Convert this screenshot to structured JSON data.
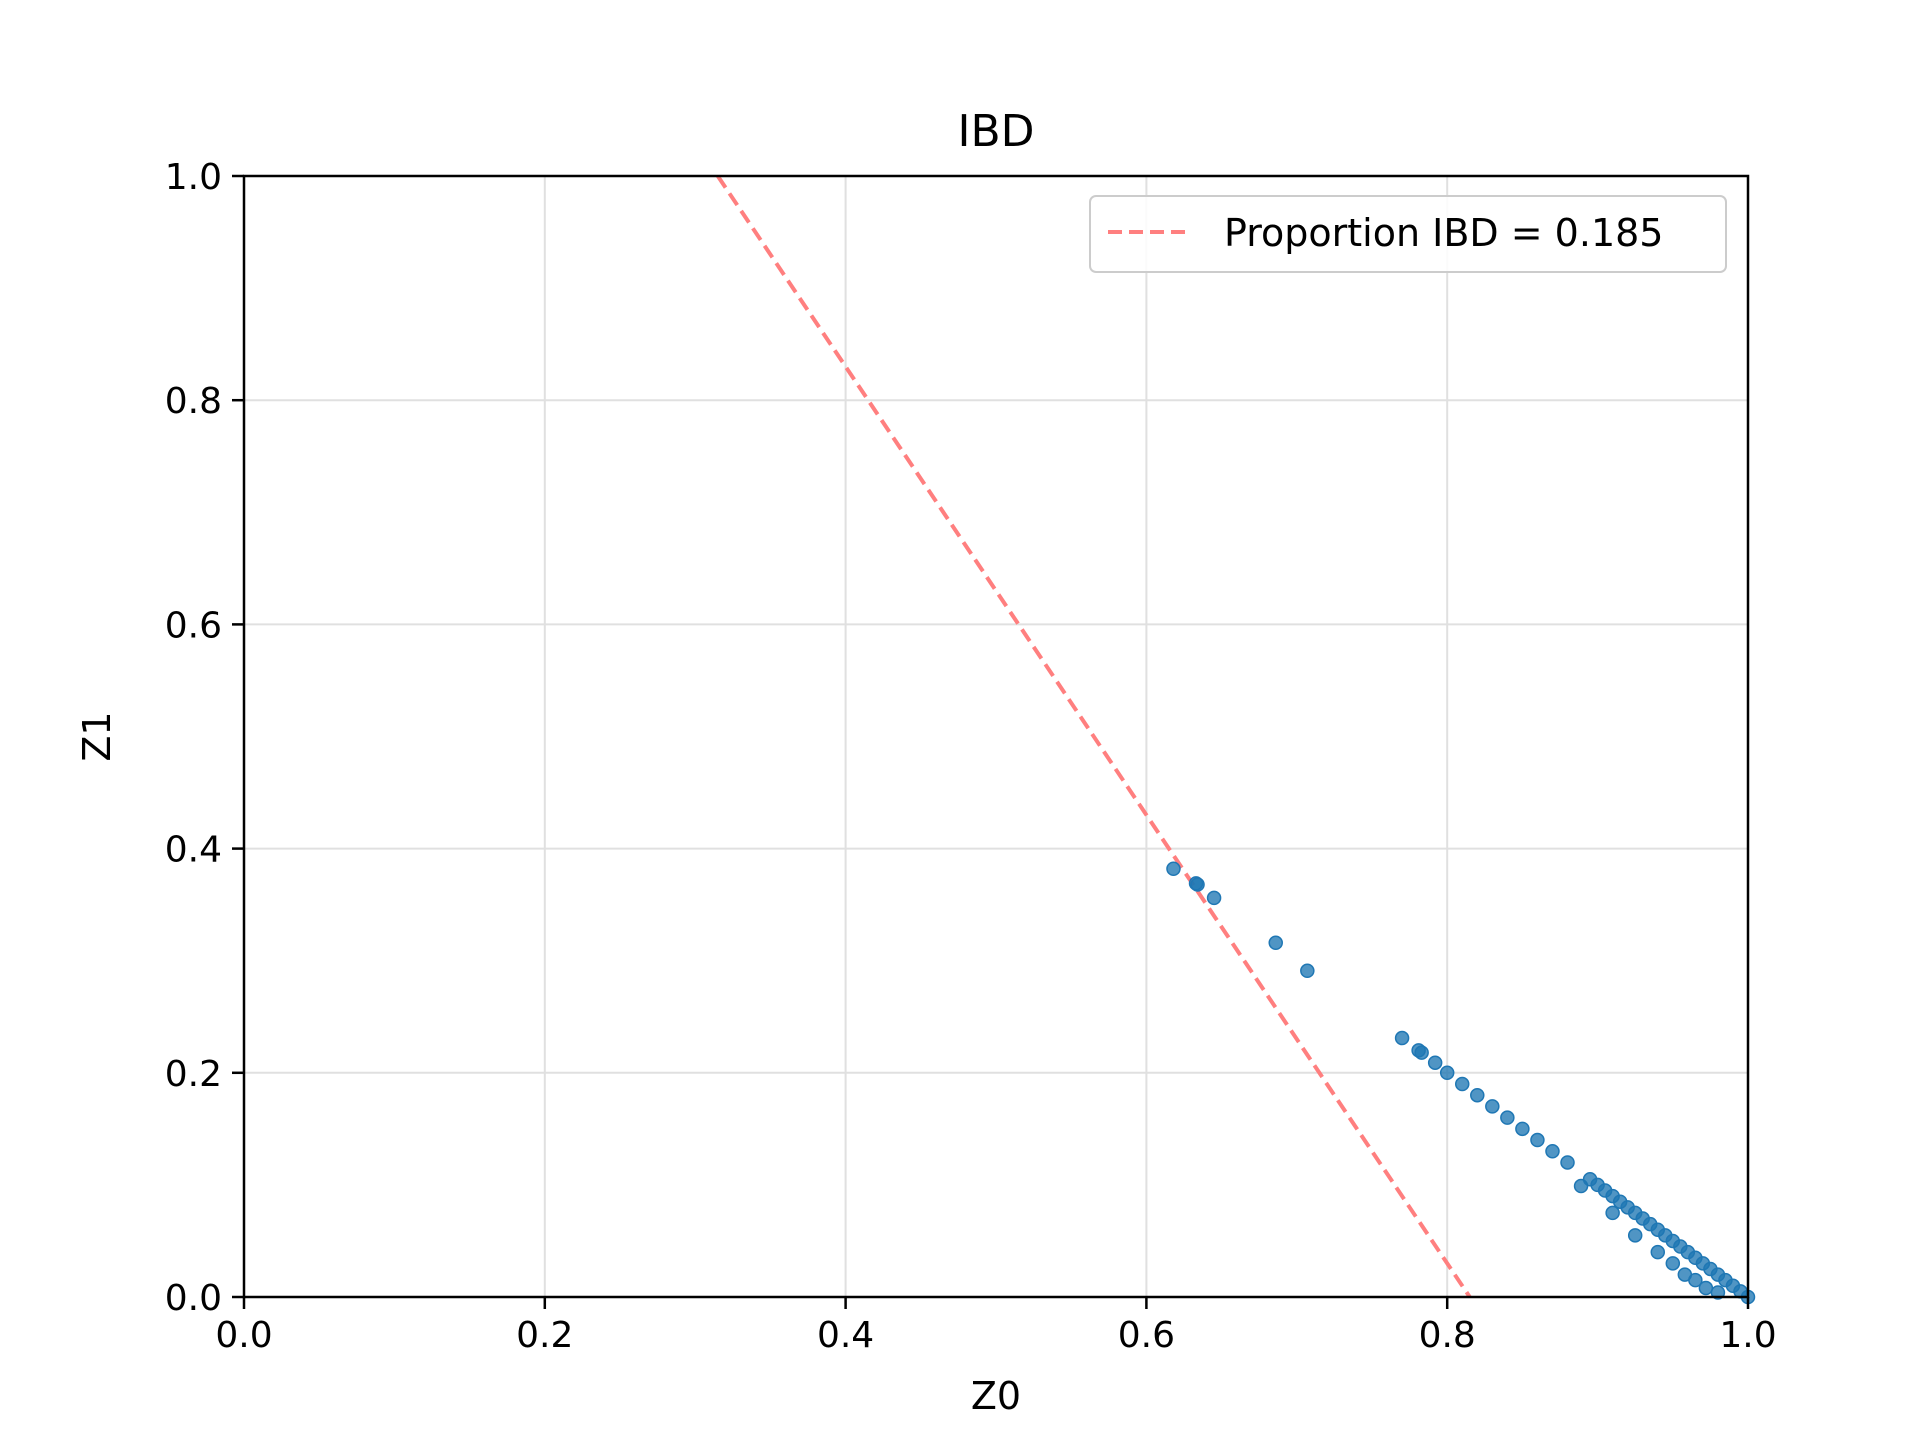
{
  "chart_data": {
    "type": "scatter",
    "title": "IBD",
    "xlabel": "Z0",
    "ylabel": "Z1",
    "xlim": [
      0.0,
      1.0
    ],
    "ylim": [
      0.0,
      1.0
    ],
    "xticks": [
      "0.0",
      "0.2",
      "0.4",
      "0.6",
      "0.8",
      "1.0"
    ],
    "yticks": [
      "0.0",
      "0.2",
      "0.4",
      "0.6",
      "0.8",
      "1.0"
    ],
    "grid": true,
    "legend_position": "top-right",
    "colors": {
      "points": "#1f77b4",
      "threshold_line": "#ff7f7f",
      "grid": "#e0e0e0"
    },
    "threshold_line": {
      "label": "Proportion IBD = 0.185",
      "style": "dashed",
      "points": [
        [
          0.315,
          1.0
        ],
        [
          0.815,
          0.0
        ]
      ]
    },
    "series": [
      {
        "marker": "circle",
        "x": [
          0.618,
          0.633,
          0.634,
          0.645,
          0.686,
          0.707,
          0.77,
          0.781,
          0.783,
          0.792,
          0.8,
          0.81,
          0.82,
          0.83,
          0.84,
          0.85,
          0.86,
          0.87,
          0.88,
          0.889,
          0.895,
          0.9,
          0.905,
          0.91,
          0.915,
          0.92,
          0.925,
          0.93,
          0.935,
          0.94,
          0.945,
          0.95,
          0.955,
          0.96,
          0.965,
          0.97,
          0.975,
          0.98,
          0.985,
          0.99,
          0.995,
          1.0,
          0.91,
          0.925,
          0.94,
          0.95,
          0.958,
          0.965,
          0.972,
          0.98
        ],
        "y": [
          0.382,
          0.369,
          0.368,
          0.356,
          0.316,
          0.291,
          0.231,
          0.22,
          0.218,
          0.209,
          0.2,
          0.19,
          0.18,
          0.17,
          0.16,
          0.15,
          0.14,
          0.13,
          0.12,
          0.099,
          0.105,
          0.1,
          0.095,
          0.09,
          0.085,
          0.08,
          0.075,
          0.07,
          0.065,
          0.06,
          0.055,
          0.05,
          0.045,
          0.04,
          0.035,
          0.03,
          0.025,
          0.02,
          0.015,
          0.01,
          0.005,
          0.0,
          0.075,
          0.055,
          0.04,
          0.03,
          0.02,
          0.015,
          0.008,
          0.004
        ]
      }
    ]
  }
}
